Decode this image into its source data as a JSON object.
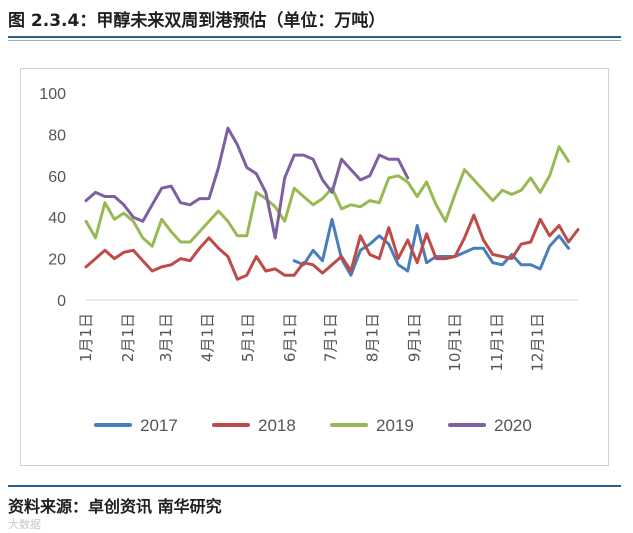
{
  "figure": {
    "title": "图 2.3.4：甲醇未来双周到港预估（单位：万吨）",
    "source": "资料来源：卓创资讯  南华研究",
    "watermark": "大数据"
  },
  "chart_data": {
    "type": "line",
    "ylim": [
      0,
      100
    ],
    "yticks": [
      0,
      20,
      40,
      60,
      80,
      100
    ],
    "xlim": [
      0,
      52
    ],
    "x_tick_labels": [
      "1月1日",
      "2月1日",
      "3月1日",
      "4月1日",
      "5月1日",
      "6月1日",
      "7月1日",
      "8月1日",
      "9月1日",
      "10月1日",
      "11月1日",
      "12月1日"
    ],
    "x_tick_positions": [
      0,
      4.43,
      8.43,
      12.86,
      17.14,
      21.57,
      25.86,
      30.29,
      34.71,
      39,
      43.43,
      47.71
    ],
    "grid": false,
    "legend_position": "bottom",
    "series": [
      {
        "name": "2017",
        "color": "#4a7ebb",
        "x_start": 22,
        "values": [
          19,
          17,
          24,
          19,
          39,
          20,
          12,
          24,
          27,
          31,
          27,
          17,
          14,
          36,
          18,
          21,
          21,
          21,
          23,
          25,
          25,
          18,
          17,
          22,
          17,
          17,
          15,
          26,
          31,
          25
        ]
      },
      {
        "name": "2018",
        "color": "#be4b48",
        "x_start": 0,
        "values": [
          16,
          20,
          24,
          20,
          23,
          24,
          19,
          14,
          16,
          17,
          20,
          19,
          25,
          30,
          25,
          21,
          10,
          12,
          21,
          14,
          15,
          12,
          12,
          18,
          17,
          13,
          17,
          21,
          14,
          31,
          22,
          20,
          35,
          20,
          29,
          18,
          32,
          20,
          20,
          21,
          30,
          41,
          29,
          22,
          21,
          20,
          27,
          28,
          39,
          31,
          36,
          28,
          34
        ]
      },
      {
        "name": "2019",
        "color": "#98b954",
        "x_start": 0,
        "values": [
          38,
          30,
          47,
          39,
          42,
          38,
          30,
          26,
          39,
          33,
          28,
          28,
          33,
          38,
          43,
          38,
          31,
          31,
          52,
          49,
          45,
          38,
          54,
          50,
          46,
          49,
          54,
          44,
          46,
          45,
          48,
          47,
          59,
          60,
          57,
          50,
          57,
          46,
          38,
          51,
          63,
          58,
          53,
          48,
          53,
          51,
          53,
          59,
          52,
          60,
          74,
          67
        ]
      },
      {
        "name": "2020",
        "color": "#7d60a0",
        "x_start": 0,
        "values": [
          48,
          52,
          50,
          50,
          46,
          40,
          38,
          46,
          54,
          55,
          47,
          46,
          49,
          49,
          64,
          83,
          75,
          64,
          61,
          52,
          30,
          59,
          70,
          70,
          68,
          58,
          52,
          68,
          63,
          58,
          60,
          70,
          68,
          68,
          59
        ]
      }
    ]
  }
}
